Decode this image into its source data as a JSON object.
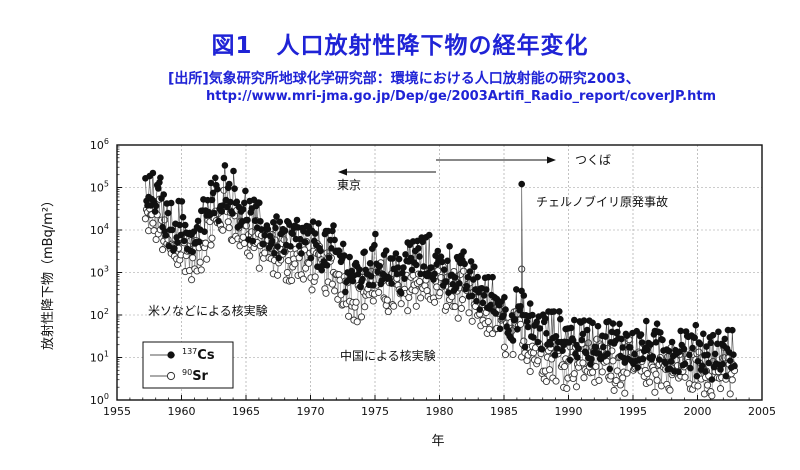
{
  "header": {
    "title": "図1　人口放射性降下物の経年変化",
    "source_line1": "[出所]気象研究所地球化学研究部：環境における人口放射能の研究2003、",
    "source_line2": "http://www.mri-jma.go.jp/Dep/ge/2003Artifi_Radio_report/coverJP.htm"
  },
  "chart_data": {
    "type": "scatter",
    "xlabel": "年",
    "ylabel": "放射性降下物（mBq/m²）",
    "xlim": [
      1955,
      2005
    ],
    "ylim": [
      1,
      1000000
    ],
    "y_scale": "log",
    "x_ticks": [
      "1955",
      "1960",
      "1965",
      "1970",
      "1975",
      "1980",
      "1985",
      "1990",
      "1995",
      "2000",
      "2005"
    ],
    "y_tick_mantissa": "10",
    "y_tick_exponents": [
      "0",
      "1",
      "2",
      "3",
      "4",
      "5",
      "6"
    ],
    "grid": true,
    "legend_position": "bottom-left",
    "annotations": {
      "tokyo": "東京",
      "tsukuba": "つくば",
      "chernobyl": "チェルノブイリ原発事故",
      "us_ussr_tests": "米ソなどによる核実験",
      "china_tests": "中国による核実験"
    },
    "series": [
      {
        "name": "137Cs",
        "label_sup": "137",
        "label_main": "Cs",
        "marker": "filled-circle",
        "anchors": [
          [
            1957.3,
            60000
          ],
          [
            1958.3,
            60000
          ],
          [
            1959.0,
            12000
          ],
          [
            1960.0,
            15000
          ],
          [
            1961.0,
            5000
          ],
          [
            1962.0,
            30000
          ],
          [
            1963.5,
            120000
          ],
          [
            1964.5,
            40000
          ],
          [
            1965.5,
            15000
          ],
          [
            1967.0,
            8000
          ],
          [
            1970.0,
            5000
          ],
          [
            1972.0,
            3000
          ],
          [
            1973.5,
            800
          ],
          [
            1975.0,
            2000
          ],
          [
            1977.0,
            1000
          ],
          [
            1978.0,
            2500
          ],
          [
            1980.0,
            1500
          ],
          [
            1981.5,
            1000
          ],
          [
            1983.0,
            400
          ],
          [
            1984.5,
            200
          ],
          [
            1985.5,
            80
          ],
          [
            1986.2,
            120
          ],
          [
            1986.8,
            60
          ],
          [
            1988.0,
            40
          ],
          [
            1990.0,
            30
          ],
          [
            1992.0,
            25
          ],
          [
            1995.0,
            20
          ],
          [
            1998.0,
            15
          ],
          [
            2000.0,
            15
          ],
          [
            2002.5,
            12
          ]
        ],
        "peak": [
          1986.37,
          120000
        ]
      },
      {
        "name": "90Sr",
        "label_sup": "90",
        "label_main": "Sr",
        "marker": "open-circle",
        "anchors": [
          [
            1957.3,
            15000
          ],
          [
            1958.3,
            15000
          ],
          [
            1959.0,
            3000
          ],
          [
            1960.0,
            4000
          ],
          [
            1961.0,
            1500
          ],
          [
            1962.0,
            8000
          ],
          [
            1963.5,
            30000
          ],
          [
            1964.5,
            10000
          ],
          [
            1965.5,
            5000
          ],
          [
            1967.0,
            2500
          ],
          [
            1970.0,
            1500
          ],
          [
            1972.0,
            800
          ],
          [
            1973.5,
            250
          ],
          [
            1975.0,
            500
          ],
          [
            1977.0,
            300
          ],
          [
            1978.0,
            600
          ],
          [
            1980.0,
            400
          ],
          [
            1981.5,
            300
          ],
          [
            1983.0,
            120
          ],
          [
            1984.5,
            70
          ],
          [
            1985.5,
            30
          ],
          [
            1986.2,
            40
          ],
          [
            1986.8,
            20
          ],
          [
            1988.0,
            10
          ],
          [
            1990.0,
            8
          ],
          [
            1992.0,
            8
          ],
          [
            1995.0,
            6
          ],
          [
            1998.0,
            5
          ],
          [
            2000.0,
            5
          ],
          [
            2002.5,
            4
          ]
        ],
        "peak": [
          1986.37,
          1200
        ]
      }
    ]
  }
}
